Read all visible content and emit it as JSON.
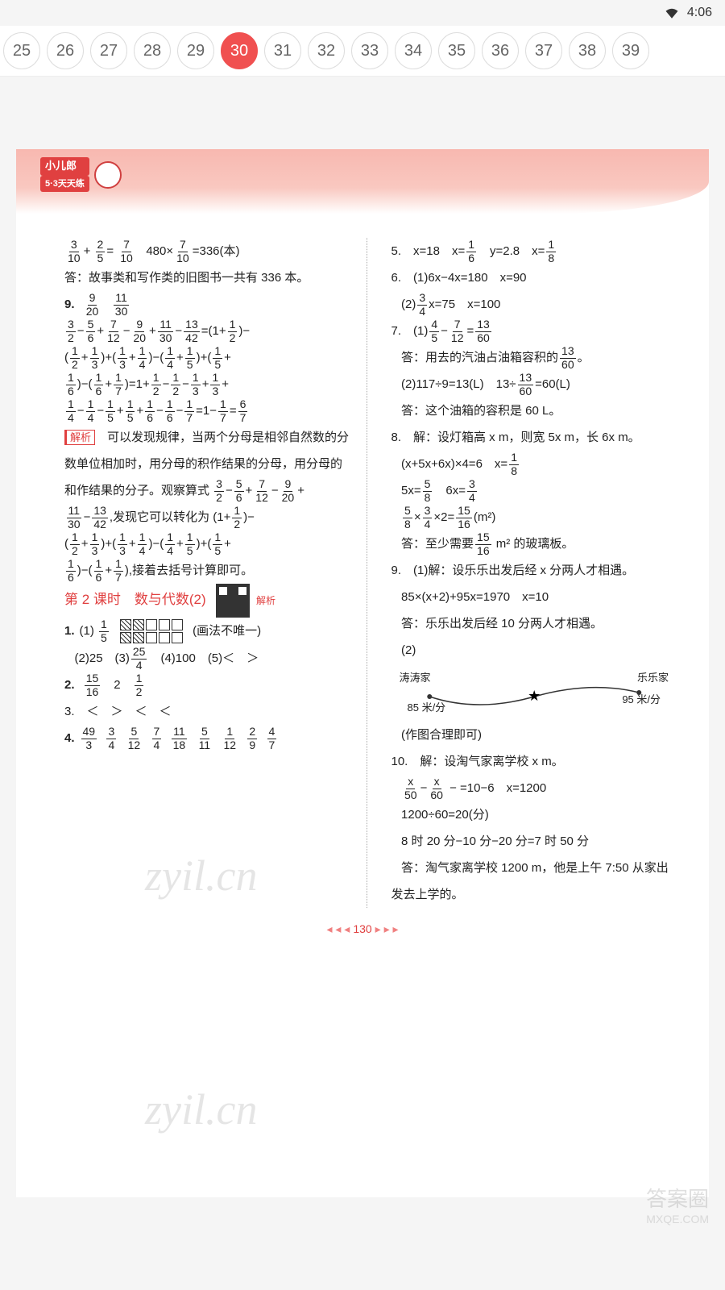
{
  "status": {
    "time": "4:06"
  },
  "tabs": {
    "numbers": [
      25,
      26,
      27,
      28,
      29,
      30,
      31,
      32,
      33,
      34,
      35,
      36,
      37,
      38,
      39
    ],
    "active": 30
  },
  "brand": {
    "title": "小儿郎",
    "sub": "5·3天天练"
  },
  "left": {
    "l1a_n1": "3",
    "l1a_d1": "10",
    "l1a_n2": "2",
    "l1a_d2": "5",
    "l1a_n3": "7",
    "l1a_d3": "10",
    "l1b_1": "480×",
    "l1b_n": "7",
    "l1b_d": "10",
    "l1b_2": "=336(本)",
    "l2": "答：故事类和写作类的旧图书一共有 336 本。",
    "q9": "9.",
    "q9a_n1": "9",
    "q9a_d1": "20",
    "q9a_n2": "11",
    "q9a_d2": "30",
    "eq1": "− + − + − =(1+ )−",
    "e1": [
      [
        "3",
        "2"
      ],
      [
        "5",
        "6"
      ],
      [
        "7",
        "12"
      ],
      [
        "9",
        "20"
      ],
      [
        "11",
        "30"
      ],
      [
        "13",
        "42"
      ],
      [
        "1",
        "2"
      ]
    ],
    "eq2": "( + )+( + )−( + )+( +",
    "e2": [
      [
        "1",
        "2"
      ],
      [
        "1",
        "3"
      ],
      [
        "1",
        "3"
      ],
      [
        "1",
        "4"
      ],
      [
        "1",
        "4"
      ],
      [
        "1",
        "5"
      ],
      [
        "1",
        "5"
      ]
    ],
    "eq3": ")−( + )=1+ − − + +",
    "e3": [
      [
        "1",
        "6"
      ],
      [
        "1",
        "6"
      ],
      [
        "1",
        "7"
      ],
      [
        "1",
        "2"
      ],
      [
        "1",
        "2"
      ],
      [
        "1",
        "3"
      ],
      [
        "1",
        "3"
      ]
    ],
    "eq4": "− − + + − − =1− =",
    "e4": [
      [
        "1",
        "4"
      ],
      [
        "1",
        "4"
      ],
      [
        "1",
        "5"
      ],
      [
        "1",
        "5"
      ],
      [
        "1",
        "6"
      ],
      [
        "1",
        "6"
      ],
      [
        "1",
        "7"
      ],
      [
        "1",
        "7"
      ],
      [
        "6",
        "7"
      ]
    ],
    "analysis_label": "解析",
    "analysis": "　可以发现规律，当两个分母是相邻自然数的分数单位相加时，用分母的积作结果的分母，用分母的和作结果的分子。观察算式 ",
    "analysis_f": [
      [
        "3",
        "2"
      ],
      [
        "5",
        "6"
      ],
      [
        "7",
        "12"
      ],
      [
        "9",
        "20"
      ]
    ],
    "analysis2": " − + − +",
    "analysis3_f": [
      [
        "11",
        "30"
      ],
      [
        "13",
        "42"
      ]
    ],
    "analysis3": " − ,发现它可以转化为 (1+ )−",
    "analysis3_last": [
      "1",
      "2"
    ],
    "analysis4": "( + )+( + )−( + )+( +",
    "analysis4_f": [
      [
        "1",
        "2"
      ],
      [
        "1",
        "3"
      ],
      [
        "1",
        "3"
      ],
      [
        "1",
        "4"
      ],
      [
        "1",
        "4"
      ],
      [
        "1",
        "5"
      ],
      [
        "1",
        "5"
      ]
    ],
    "analysis5": ")−( + ),接着去括号计算即可。",
    "analysis5_f": [
      [
        "1",
        "6"
      ],
      [
        "1",
        "6"
      ],
      [
        "1",
        "7"
      ]
    ],
    "lesson": "第 2 课时　数与代数(2)",
    "qr_label": "解析",
    "q1": "1.",
    "q1_1a": "(1)",
    "q1_1f": [
      "1",
      "5"
    ],
    "q1_1b": "(画法不唯一)",
    "q1_2": "(2)25　(3)",
    "q1_2f": [
      "25",
      "4"
    ],
    "q1_2b": "　(4)100　(5)＜　＞",
    "q2": "2.",
    "q2_f1": [
      "15",
      "16"
    ],
    "q2_m": "　2　",
    "q2_f2": [
      "1",
      "2"
    ],
    "q3": "3.　＜　＞　＜　＜",
    "q4": "4.",
    "q4_f": [
      [
        "49",
        "3"
      ],
      [
        "3",
        "4"
      ],
      [
        "5",
        "12"
      ],
      [
        "7",
        "4"
      ],
      [
        "11",
        "18"
      ],
      [
        "5",
        "11"
      ],
      [
        "1",
        "12"
      ],
      [
        "2",
        "9"
      ],
      [
        "4",
        "7"
      ]
    ]
  },
  "right": {
    "q5": "5.　x=18　x=",
    "q5f1": [
      "1",
      "6"
    ],
    "q5b": "　y=2.8　x=",
    "q5f2": [
      "1",
      "8"
    ],
    "q6a": "6.　(1)6x−4x=180　x=90",
    "q6b": "(2)",
    "q6bf": [
      "3",
      "4"
    ],
    "q6bt": "x=75　x=100",
    "q7a": "7.　(1)",
    "q7af": [
      [
        "4",
        "5"
      ],
      [
        "7",
        "12"
      ],
      [
        "13",
        "60"
      ]
    ],
    "q7am": " − = ",
    "q7a2": "答：用去的汽油占油箱容积的",
    "q7a2f": [
      "13",
      "60"
    ],
    "q7a2b": "。",
    "q7b": "(2)117÷9=13(L)　13÷",
    "q7bf": [
      "13",
      "60"
    ],
    "q7bt": "=60(L)",
    "q7c": "答：这个油箱的容积是 60 L。",
    "q8a": "8.　解：设灯箱高 x m，则宽 5x m，长 6x m。",
    "q8b": "(x+5x+6x)×4=6　x=",
    "q8bf": [
      "1",
      "8"
    ],
    "q8c1": "5x=",
    "q8cf1": [
      "5",
      "8"
    ],
    "q8c2": "　6x=",
    "q8cf2": [
      "3",
      "4"
    ],
    "q8d1": "",
    "q8df": [
      [
        "5",
        "8"
      ],
      [
        "3",
        "4"
      ],
      [
        "15",
        "16"
      ]
    ],
    "q8dm": " × ×2= (m²)",
    "q8e": "答：至少需要",
    "q8ef": [
      "15",
      "16"
    ],
    "q8et": " m² 的玻璃板。",
    "q9a": "9.　(1)解：设乐乐出发后经 x 分两人才相遇。",
    "q9b": "85×(x+2)+95x=1970　x=10",
    "q9c": "答：乐乐出发后经 10 分两人才相遇。",
    "q9d": "(2)",
    "dg_left": "涛涛家",
    "dg_right": "乐乐家",
    "dg_l1": "85 米/分",
    "dg_l2": "95 米/分",
    "q9e": "(作图合理即可)",
    "q10a": "10.　解：设淘气家离学校 x m。",
    "q10b_f": [
      [
        "x",
        "50"
      ],
      [
        "x",
        "60"
      ]
    ],
    "q10b": " − =10−6　x=1200",
    "q10c": "1200÷60=20(分)",
    "q10d": "8 时 20 分−10 分−20 分=7 时 50 分",
    "q10e": "答：淘气家离学校 1200 m，他是上午 7:50 从家出发去上学的。"
  },
  "footer": {
    "page": "130"
  },
  "watermark": {
    "br1": "答案圈",
    "br2": "MXQE.COM"
  },
  "colors": {
    "accent": "#e04040",
    "tab_active": "#f05050",
    "header_band": "#f8b8b0"
  }
}
